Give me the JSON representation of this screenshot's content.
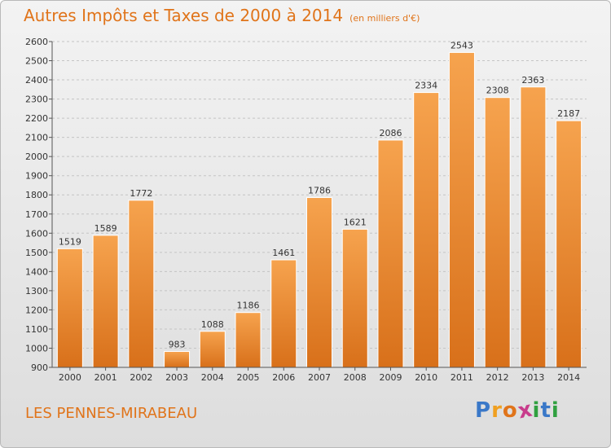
{
  "chart_data": {
    "type": "bar",
    "title": "Autres Impôts et Taxes de 2000 à 2014",
    "subtitle": "(en milliers d'€)",
    "categories": [
      "2000",
      "2001",
      "2002",
      "2003",
      "2004",
      "2005",
      "2006",
      "2007",
      "2008",
      "2009",
      "2010",
      "2011",
      "2012",
      "2013",
      "2014"
    ],
    "values": [
      1519,
      1589,
      1772,
      983,
      1088,
      1186,
      1461,
      1786,
      1621,
      2086,
      2334,
      2543,
      2308,
      2363,
      2187
    ],
    "ylim": [
      900,
      2600
    ],
    "yticks": [
      900,
      1000,
      1100,
      1200,
      1300,
      1400,
      1500,
      1600,
      1700,
      1800,
      1900,
      2000,
      2100,
      2200,
      2300,
      2400,
      2500,
      2600
    ],
    "grid": true,
    "bar_color": "#f08c2e"
  },
  "footer": {
    "commune": "LES PENNES-MIRABEAU",
    "logo_letters": [
      "P",
      "r",
      "o",
      "x",
      "i",
      "t",
      "i"
    ],
    "logo_colors": [
      "#3a78c8",
      "#f0a020",
      "#e0741a",
      "#c83c8c",
      "#30a040",
      "#3a78c8",
      "#30a040"
    ]
  }
}
